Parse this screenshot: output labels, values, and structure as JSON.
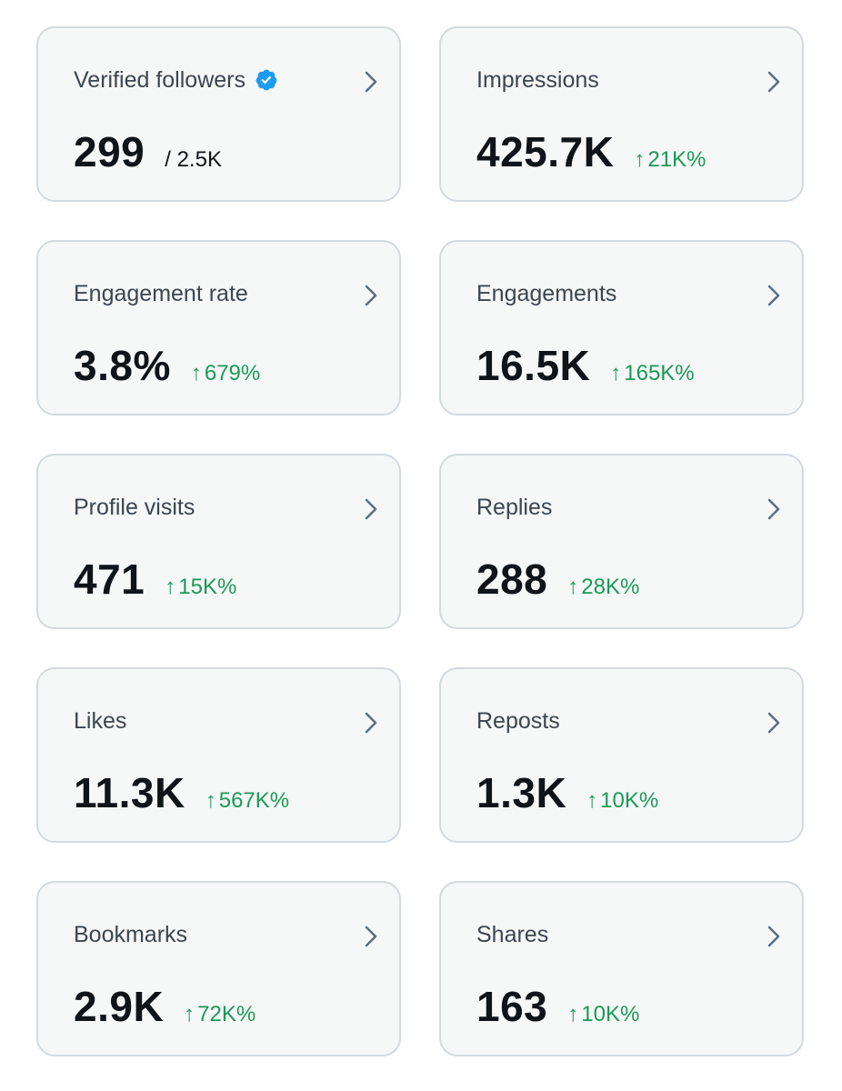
{
  "colors": {
    "card_background": "#f6f7f7",
    "card_border": "#d3dadf",
    "label_text": "#3b4650",
    "value_text": "#0f1419",
    "positive_change": "#1a9a58",
    "verified_badge": "#1d9bf0",
    "chevron": "#5b7083"
  },
  "metrics": [
    {
      "label": "Verified followers",
      "value": "299",
      "total": "/ 2.5K",
      "change": "",
      "icon": "verified-badge-icon"
    },
    {
      "label": "Impressions",
      "value": "425.7K",
      "change": "21K%",
      "change_icon": "arrow-up-icon"
    },
    {
      "label": "Engagement rate",
      "value": "3.8%",
      "change": "679%",
      "change_icon": "arrow-up-icon"
    },
    {
      "label": "Engagements",
      "value": "16.5K",
      "change": "165K%",
      "change_icon": "arrow-up-icon"
    },
    {
      "label": "Profile visits",
      "value": "471",
      "change": "15K%",
      "change_icon": "arrow-up-icon"
    },
    {
      "label": "Replies",
      "value": "288",
      "change": "28K%",
      "change_icon": "arrow-up-icon"
    },
    {
      "label": "Likes",
      "value": "11.3K",
      "change": "567K%",
      "change_icon": "arrow-up-icon"
    },
    {
      "label": "Reposts",
      "value": "1.3K",
      "change": "10K%",
      "change_icon": "arrow-up-icon"
    },
    {
      "label": "Bookmarks",
      "value": "2.9K",
      "change": "72K%",
      "change_icon": "arrow-up-icon"
    },
    {
      "label": "Shares",
      "value": "163",
      "change": "10K%",
      "change_icon": "arrow-up-icon"
    }
  ]
}
